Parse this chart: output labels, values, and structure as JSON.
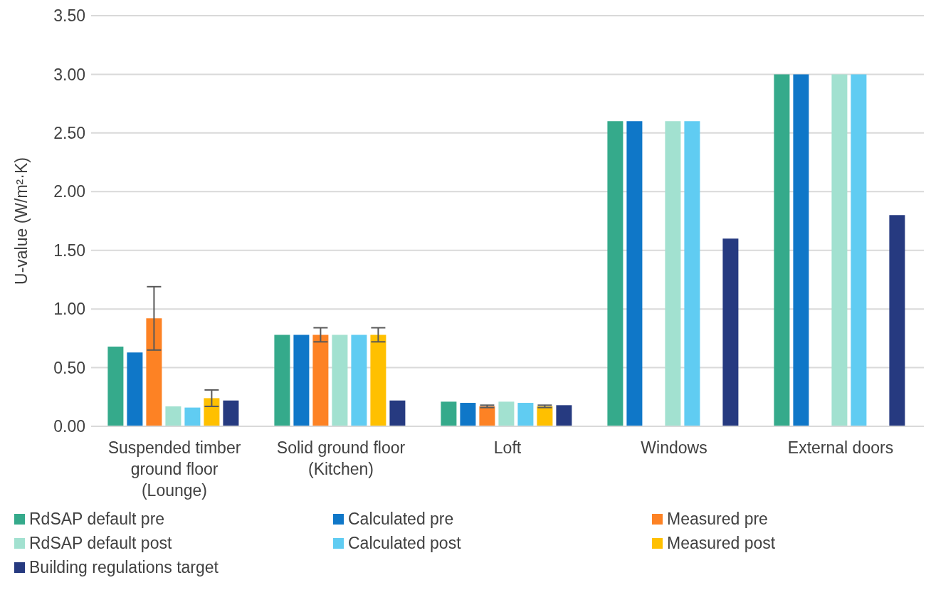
{
  "chart_data": {
    "type": "bar",
    "ylabel": "U-value (W/m²·K)",
    "categories": [
      "Suspended timber ground floor (Lounge)",
      "Solid ground floor (Kitchen)",
      "Loft",
      "Windows",
      "External doors"
    ],
    "series": [
      {
        "name": "RdSAP default pre",
        "color": "#35aa8b",
        "values": [
          0.68,
          0.78,
          0.21,
          2.6,
          3.0
        ]
      },
      {
        "name": "Calculated pre",
        "color": "#0f77c8",
        "values": [
          0.63,
          0.78,
          0.2,
          2.6,
          3.0
        ]
      },
      {
        "name": "Measured pre",
        "color": "#fd8224",
        "values": [
          0.92,
          0.78,
          0.17,
          null,
          null
        ],
        "errors": [
          [
            0.65,
            1.19
          ],
          [
            0.72,
            0.84
          ],
          [
            0.16,
            0.18
          ],
          null,
          null
        ]
      },
      {
        "name": "RdSAP default post",
        "color": "#a2e1d0",
        "values": [
          0.17,
          0.78,
          0.21,
          2.6,
          3.0
        ]
      },
      {
        "name": "Calculated post",
        "color": "#60ccf2",
        "values": [
          0.16,
          0.78,
          0.2,
          2.6,
          3.0
        ]
      },
      {
        "name": "Measured post",
        "color": "#ffc000",
        "values": [
          0.24,
          0.78,
          0.17,
          null,
          null
        ],
        "errors": [
          [
            0.17,
            0.31
          ],
          [
            0.72,
            0.84
          ],
          [
            0.16,
            0.18
          ],
          null,
          null
        ]
      },
      {
        "name": "Building regulations target",
        "color": "#263a80",
        "values": [
          0.22,
          0.22,
          0.18,
          1.6,
          1.8
        ]
      }
    ],
    "ylim": [
      0,
      3.5
    ],
    "yticks": [
      {
        "value": 0,
        "label": "0.00"
      },
      {
        "value": 0.5,
        "label": "0.50"
      },
      {
        "value": 1,
        "label": "1.00"
      },
      {
        "value": 1.5,
        "label": "1.50"
      },
      {
        "value": 2,
        "label": "2.00"
      },
      {
        "value": 2.5,
        "label": "2.50"
      },
      {
        "value": 3,
        "label": "3.00"
      },
      {
        "value": 3.5,
        "label": "3.50"
      }
    ],
    "grid": "y",
    "legend": "bottom"
  }
}
